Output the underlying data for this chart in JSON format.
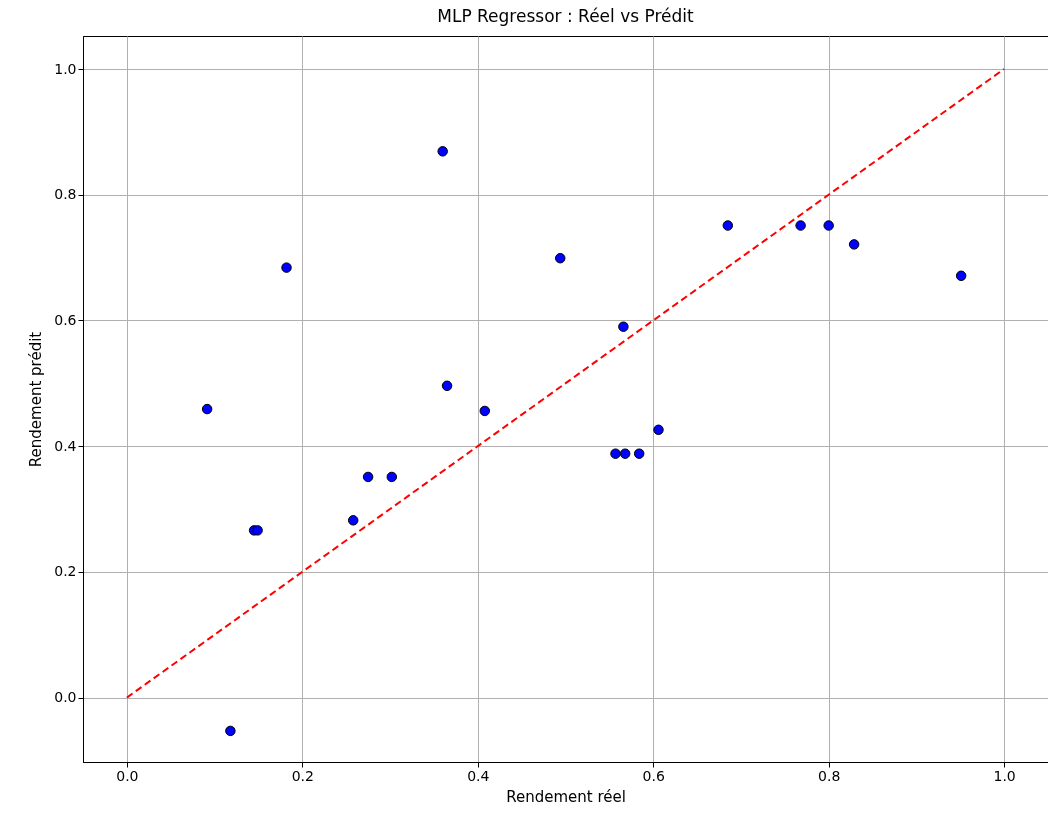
{
  "chart_data": {
    "type": "scatter",
    "title": "MLP Regressor : Réel vs Prédit",
    "xlabel": "Rendement réel",
    "ylabel": "Rendement prédit",
    "series": [
      {
        "color": "#0000ff",
        "marker": "circle",
        "x": [
          0.118,
          0.0915,
          0.145,
          0.149,
          0.182,
          0.258,
          0.275,
          0.302,
          0.36,
          0.365,
          0.408,
          0.494,
          0.557,
          0.568,
          0.584,
          0.566,
          0.606,
          0.685,
          0.768,
          0.8,
          0.829,
          0.951
        ],
        "values": [
          -0.053,
          0.459,
          0.266,
          0.266,
          0.684,
          0.282,
          0.351,
          0.351,
          0.869,
          0.496,
          0.456,
          0.699,
          0.388,
          0.388,
          0.388,
          0.59,
          0.426,
          0.751,
          0.751,
          0.751,
          0.721,
          0.671
        ]
      },
      {
        "type": "line",
        "color": "#ff0000",
        "line_style": "dashed",
        "x": [
          0,
          1
        ],
        "values": [
          0,
          1
        ]
      }
    ],
    "xlim": [
      -0.05,
      1.05
    ],
    "ylim": [
      -0.1025,
      1.0525
    ],
    "xticks": [
      {
        "value": 0,
        "label": "0.0"
      },
      0.2,
      0.4,
      0.6,
      0.8,
      {
        "value": 1,
        "label": "1.0"
      }
    ],
    "yticks": [
      {
        "value": 0,
        "label": "0.0"
      },
      0.2,
      0.4,
      0.6,
      0.8,
      {
        "value": 1,
        "label": "1.0"
      }
    ],
    "grid": true
  }
}
